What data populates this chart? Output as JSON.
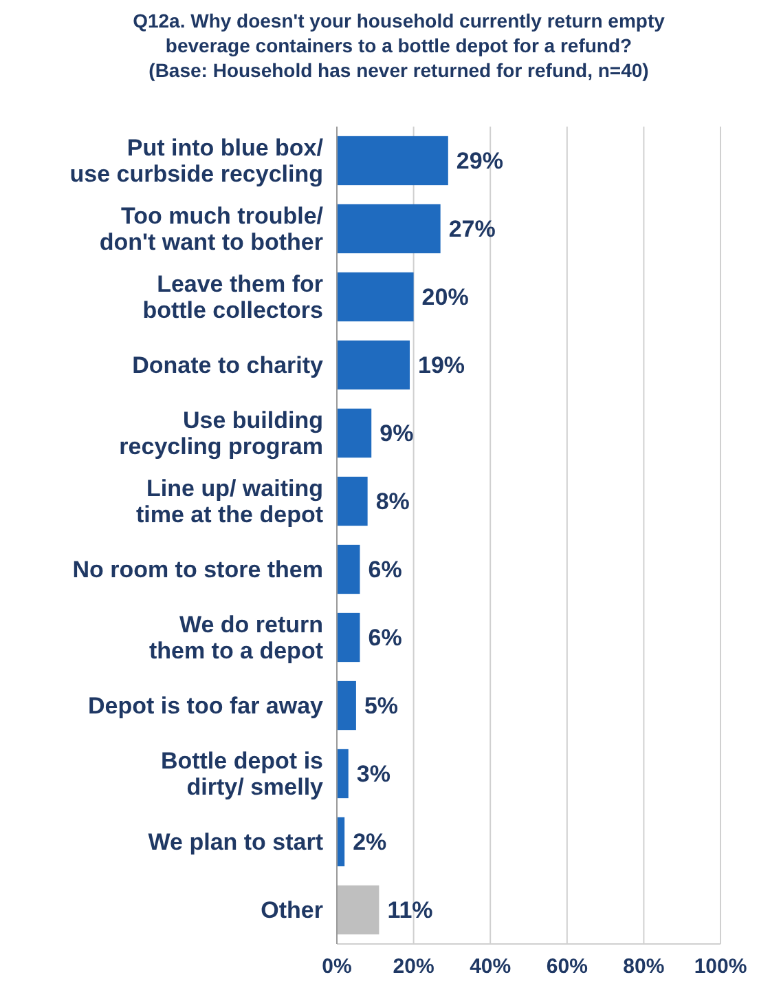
{
  "chart_data": {
    "type": "bar",
    "orientation": "horizontal",
    "title": "Q12a. Why doesn't your household currently return empty\nbeverage containers to a bottle depot for a refund?\n(Base: Household has never returned for refund, n=40)",
    "categories": [
      "Put into blue box/\nuse curbside recycling",
      "Too much trouble/\ndon't want to bother",
      "Leave them for\nbottle collectors",
      "Donate to charity",
      "Use building\nrecycling program",
      "Line up/ waiting\ntime at the depot",
      "No room to store them",
      "We do return\nthem to a depot",
      "Depot is too far away",
      "Bottle depot is\ndirty/ smelly",
      "We plan to start",
      "Other"
    ],
    "values": [
      29,
      27,
      20,
      19,
      9,
      8,
      6,
      6,
      5,
      3,
      2,
      11
    ],
    "value_labels": [
      "29%",
      "27%",
      "20%",
      "19%",
      "9%",
      "8%",
      "6%",
      "6%",
      "5%",
      "3%",
      "2%",
      "11%"
    ],
    "colors": [
      "#1f6bbf",
      "#1f6bbf",
      "#1f6bbf",
      "#1f6bbf",
      "#1f6bbf",
      "#1f6bbf",
      "#1f6bbf",
      "#1f6bbf",
      "#1f6bbf",
      "#1f6bbf",
      "#1f6bbf",
      "#bfbfbf"
    ],
    "xlim": [
      0,
      100
    ],
    "xticks": [
      {
        "value": 0,
        "label": "0%"
      },
      {
        "value": 20,
        "label": "20%"
      },
      {
        "value": 40,
        "label": "40%"
      },
      {
        "value": 60,
        "label": "60%"
      },
      {
        "value": 80,
        "label": "80%"
      },
      {
        "value": 100,
        "label": "100%"
      }
    ],
    "grid": "x"
  }
}
